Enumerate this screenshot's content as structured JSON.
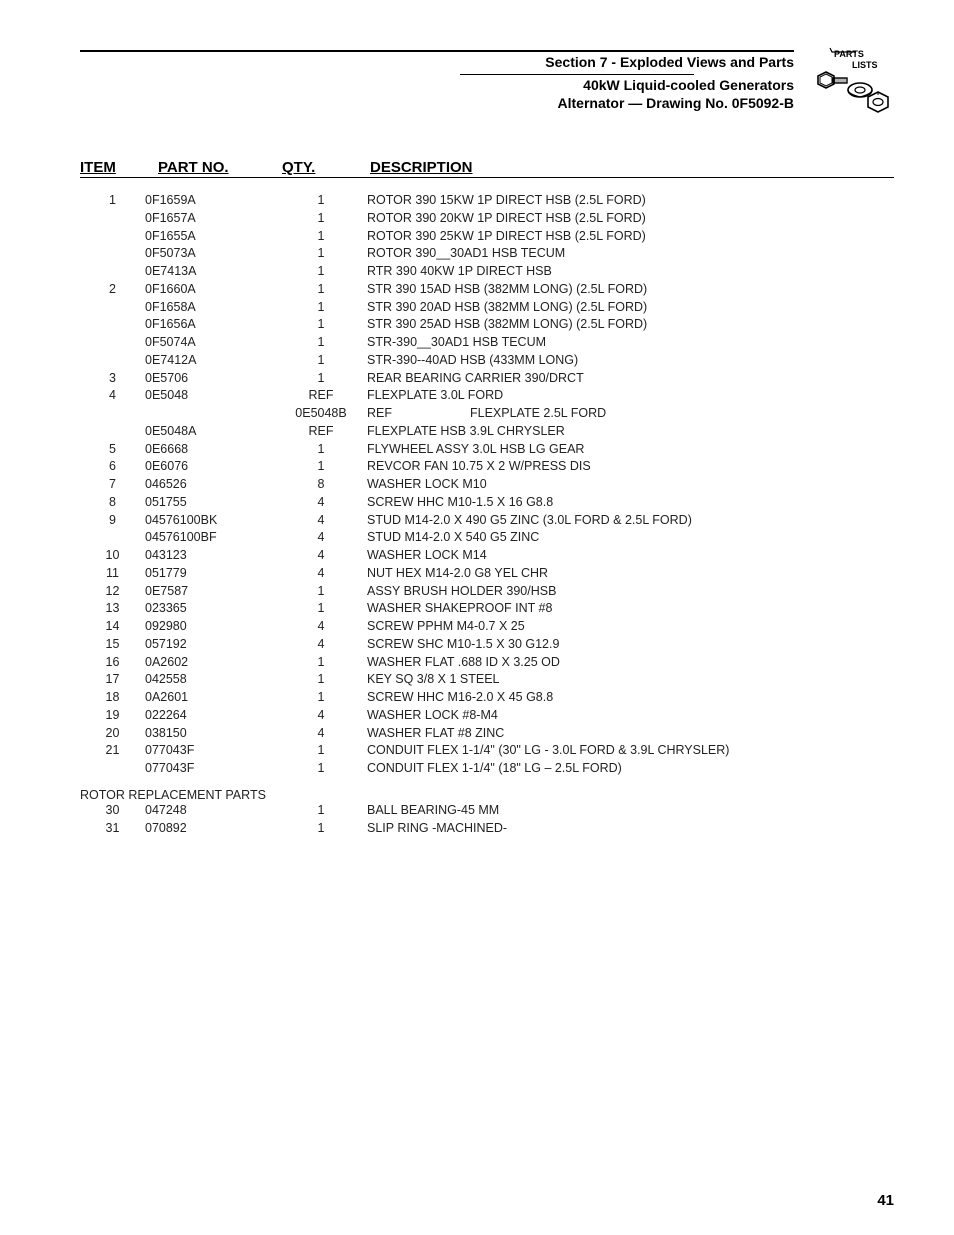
{
  "header": {
    "section_title": "Section 7 - Exploded Views and Parts",
    "generator_title": "40kW Liquid-cooled Generators",
    "drawing_title": "Alternator — Drawing No. 0F5092-B",
    "logo_text_top": "PARTS",
    "logo_text_bottom": "LISTS"
  },
  "columns": {
    "item": "ITEM",
    "part": "PART NO.",
    "qty": "QTY.",
    "desc": "DESCRIPTION"
  },
  "rows": [
    {
      "item": "1",
      "part": "0F1659A",
      "qty": "1",
      "desc": "ROTOR 390 15KW 1P DIRECT HSB (2.5L FORD)"
    },
    {
      "item": "",
      "part": "0F1657A",
      "qty": "1",
      "desc": "ROTOR 390 20KW 1P DIRECT HSB (2.5L FORD)"
    },
    {
      "item": "",
      "part": "0F1655A",
      "qty": "1",
      "desc": "ROTOR 390 25KW 1P DIRECT HSB (2.5L FORD)"
    },
    {
      "item": "",
      "part": "0F5073A",
      "qty": "1",
      "desc": "ROTOR 390__30AD1 HSB TECUM"
    },
    {
      "item": "",
      "part": "0E7413A",
      "qty": "1",
      "desc": "RTR 390 40KW 1P DIRECT HSB"
    },
    {
      "item": "2",
      "part": "0F1660A",
      "qty": "1",
      "desc": "STR 390 15AD HSB (382MM LONG) (2.5L FORD)"
    },
    {
      "item": "",
      "part": "0F1658A",
      "qty": "1",
      "desc": "STR 390 20AD HSB (382MM LONG) (2.5L FORD)"
    },
    {
      "item": "",
      "part": "0F1656A",
      "qty": "1",
      "desc": "STR 390 25AD HSB (382MM LONG) (2.5L FORD)"
    },
    {
      "item": "",
      "part": "0F5074A",
      "qty": "1",
      "desc": "STR-390__30AD1 HSB TECUM"
    },
    {
      "item": "",
      "part": "0E7412A",
      "qty": "1",
      "desc": "STR-390--40AD HSB (433MM LONG)"
    },
    {
      "item": "3",
      "part": "0E5706",
      "qty": "1",
      "desc": "REAR BEARING CARRIER 390/DRCT"
    },
    {
      "item": "4",
      "part": "0E5048",
      "qty": "REF",
      "desc": "FLEXPLATE 3.0L FORD"
    },
    {
      "item": "",
      "part": "",
      "qty": "0E5048B",
      "desc": "REF",
      "desc2": "FLEXPLATE 2.5L FORD",
      "indent": true
    },
    {
      "item": "",
      "part": "0E5048A",
      "qty": "REF",
      "desc": "FLEXPLATE HSB 3.9L CHRYSLER"
    },
    {
      "item": "5",
      "part": "0E6668",
      "qty": "1",
      "desc": "FLYWHEEL ASSY 3.0L HSB LG GEAR"
    },
    {
      "item": "6",
      "part": "0E6076",
      "qty": "1",
      "desc": "REVCOR FAN 10.75 X 2 W/PRESS DIS"
    },
    {
      "item": "7",
      "part": "046526",
      "qty": "8",
      "desc": "WASHER LOCK M10"
    },
    {
      "item": "8",
      "part": "051755",
      "qty": "4",
      "desc": "SCREW HHC M10-1.5 X 16 G8.8"
    },
    {
      "item": "9",
      "part": "04576100BK",
      "qty": "4",
      "desc": "STUD M14-2.0 X 490 G5 ZINC (3.0L FORD & 2.5L FORD)"
    },
    {
      "item": "",
      "part": "04576100BF",
      "qty": "4",
      "desc": "STUD M14-2.0 X 540 G5 ZINC"
    },
    {
      "item": "10",
      "part": "043123",
      "qty": "4",
      "desc": "WASHER LOCK M14"
    },
    {
      "item": "11",
      "part": "051779",
      "qty": "4",
      "desc": "NUT HEX M14-2.0 G8 YEL CHR"
    },
    {
      "item": "12",
      "part": "0E7587",
      "qty": "1",
      "desc": "ASSY BRUSH HOLDER 390/HSB"
    },
    {
      "item": "13",
      "part": "023365",
      "qty": "1",
      "desc": "WASHER SHAKEPROOF INT #8"
    },
    {
      "item": "14",
      "part": "092980",
      "qty": "4",
      "desc": "SCREW PPHM M4-0.7 X 25"
    },
    {
      "item": "15",
      "part": "057192",
      "qty": "4",
      "desc": "SCREW SHC M10-1.5 X 30 G12.9"
    },
    {
      "item": "16",
      "part": "0A2602",
      "qty": "1",
      "desc": "WASHER FLAT .688 ID X 3.25 OD"
    },
    {
      "item": "17",
      "part": "042558",
      "qty": "1",
      "desc": "KEY SQ 3/8 X 1 STEEL"
    },
    {
      "item": "18",
      "part": "0A2601",
      "qty": "1",
      "desc": "SCREW HHC M16-2.0 X 45 G8.8"
    },
    {
      "item": "19",
      "part": "022264",
      "qty": "4",
      "desc": "WASHER LOCK #8-M4"
    },
    {
      "item": "20",
      "part": "038150",
      "qty": "4",
      "desc": "WASHER FLAT #8 ZINC"
    },
    {
      "item": "21",
      "part": "077043F",
      "qty": "1",
      "desc": "CONDUIT FLEX 1-1/4\" (30\" LG - 3.0L FORD & 3.9L CHRYSLER)"
    },
    {
      "item": "",
      "part": "077043F",
      "qty": "1",
      "desc": "CONDUIT FLEX 1-1/4\" (18\" LG – 2.5L FORD)"
    }
  ],
  "section_label": "ROTOR REPLACEMENT PARTS",
  "rows2": [
    {
      "item": "30",
      "part": "047248",
      "qty": "1",
      "desc": "BALL BEARING-45 MM"
    },
    {
      "item": "31",
      "part": "070892",
      "qty": "1",
      "desc": "SLIP RING -MACHINED-"
    }
  ],
  "page_number": "41"
}
